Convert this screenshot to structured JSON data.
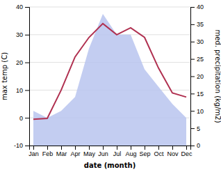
{
  "chart_data": {
    "type": "line",
    "categories": [
      "Jan",
      "Feb",
      "Mar",
      "Apr",
      "May",
      "Jun",
      "Jul",
      "Aug",
      "Sep",
      "Oct",
      "Nov",
      "Dec"
    ],
    "series": [
      {
        "type": "area",
        "axis": "y2",
        "color": "#b8c4ee",
        "values": [
          10.0,
          8.0,
          10.0,
          14.0,
          28.0,
          38.0,
          32.0,
          32.0,
          22.0,
          17.0,
          12.0,
          8.0
        ]
      },
      {
        "type": "line",
        "color": "#b03050",
        "values": [
          -0.5,
          -0.2,
          10.0,
          22.0,
          29.0,
          34.0,
          30.0,
          32.5,
          29.0,
          18.0,
          9.0,
          7.5
        ]
      }
    ],
    "xlabel": "date (month)",
    "ylabel": "max temp (C)",
    "y2label": "med. precipitation (kg/m2)",
    "ylim": [
      -10,
      40
    ],
    "yticks": [
      -10,
      0,
      10,
      20,
      30,
      40
    ],
    "y2lim": [
      0,
      40
    ],
    "y2ticks": [
      0,
      5,
      10,
      15,
      20,
      25,
      30,
      35,
      40
    ],
    "grid": true
  }
}
